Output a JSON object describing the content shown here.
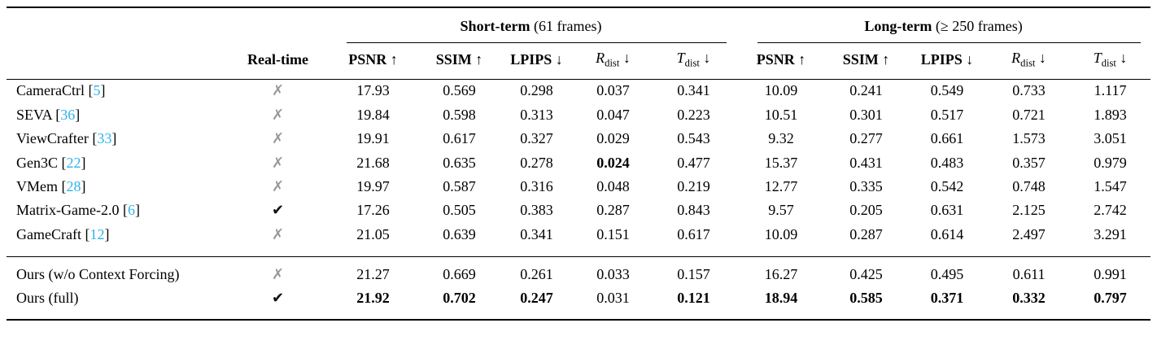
{
  "table": {
    "groups": [
      {
        "name": "Short-term",
        "detail": "(61 frames)"
      },
      {
        "name": "Long-term",
        "detail": "(≥ 250 frames)"
      }
    ],
    "columns": {
      "realtime_label": "Real-time",
      "metrics": [
        {
          "label": "PSNR",
          "style": "bold",
          "arrow": "↑"
        },
        {
          "label": "SSIM",
          "style": "bold",
          "arrow": "↑"
        },
        {
          "label": "LPIPS",
          "style": "bold",
          "arrow": "↓"
        },
        {
          "label": "R",
          "sub": "dist",
          "style": "math",
          "arrow": "↓"
        },
        {
          "label": "T",
          "sub": "dist",
          "style": "math",
          "arrow": "↓"
        }
      ]
    },
    "glyphs": {
      "check": "✔",
      "cross": "✗"
    },
    "colors": {
      "citation": "#2fb3e8",
      "cross": "#999999",
      "check": "#111111"
    },
    "sections": [
      {
        "rows": [
          {
            "method": "CameraCtrl",
            "cite": "5",
            "realtime": false,
            "values": [
              "17.93",
              "0.569",
              "0.298",
              "0.037",
              "0.341",
              "10.09",
              "0.241",
              "0.549",
              "0.733",
              "1.117"
            ],
            "bold": []
          },
          {
            "method": "SEVA",
            "cite": "36",
            "realtime": false,
            "values": [
              "19.84",
              "0.598",
              "0.313",
              "0.047",
              "0.223",
              "10.51",
              "0.301",
              "0.517",
              "0.721",
              "1.893"
            ],
            "bold": []
          },
          {
            "method": "ViewCrafter",
            "cite": "33",
            "realtime": false,
            "values": [
              "19.91",
              "0.617",
              "0.327",
              "0.029",
              "0.543",
              "9.32",
              "0.277",
              "0.661",
              "1.573",
              "3.051"
            ],
            "bold": []
          },
          {
            "method": "Gen3C",
            "cite": "22",
            "realtime": false,
            "values": [
              "21.68",
              "0.635",
              "0.278",
              "0.024",
              "0.477",
              "15.37",
              "0.431",
              "0.483",
              "0.357",
              "0.979"
            ],
            "bold": [
              3
            ]
          },
          {
            "method": "VMem",
            "cite": "28",
            "realtime": false,
            "values": [
              "19.97",
              "0.587",
              "0.316",
              "0.048",
              "0.219",
              "12.77",
              "0.335",
              "0.542",
              "0.748",
              "1.547"
            ],
            "bold": []
          },
          {
            "method": "Matrix-Game-2.0",
            "cite": "6",
            "realtime": true,
            "values": [
              "17.26",
              "0.505",
              "0.383",
              "0.287",
              "0.843",
              "9.57",
              "0.205",
              "0.631",
              "2.125",
              "2.742"
            ],
            "bold": []
          },
          {
            "method": "GameCraft",
            "cite": "12",
            "realtime": false,
            "values": [
              "21.05",
              "0.639",
              "0.341",
              "0.151",
              "0.617",
              "10.09",
              "0.287",
              "0.614",
              "2.497",
              "3.291"
            ],
            "bold": []
          }
        ]
      },
      {
        "rows": [
          {
            "method": "Ours (w/o Context Forcing)",
            "cite": null,
            "realtime": false,
            "values": [
              "21.27",
              "0.669",
              "0.261",
              "0.033",
              "0.157",
              "16.27",
              "0.425",
              "0.495",
              "0.611",
              "0.991"
            ],
            "bold": []
          },
          {
            "method": "Ours (full)",
            "cite": null,
            "realtime": true,
            "values": [
              "21.92",
              "0.702",
              "0.247",
              "0.031",
              "0.121",
              "18.94",
              "0.585",
              "0.371",
              "0.332",
              "0.797"
            ],
            "bold": [
              0,
              1,
              2,
              4,
              5,
              6,
              7,
              8,
              9
            ]
          }
        ]
      }
    ]
  }
}
